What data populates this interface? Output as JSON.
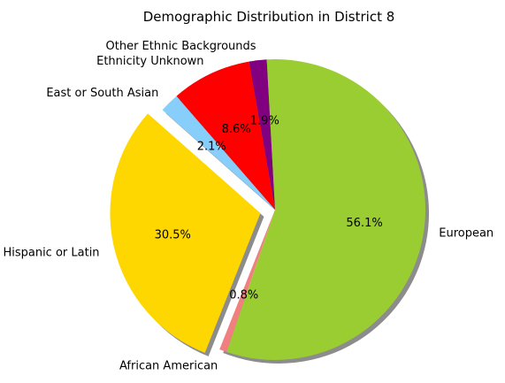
{
  "chart_data": {
    "type": "pie",
    "title": "Demographic Distribution in District 8",
    "start_angle_deg": 100,
    "direction": "clockwise",
    "shadow": true,
    "slices": [
      {
        "label": "Other Ethnic Backgrounds",
        "value": 1.9,
        "pct_label": "1.9%",
        "color": "#800080",
        "explode": 0
      },
      {
        "label": "European",
        "value": 56.1,
        "pct_label": "56.1%",
        "color": "#9ACD32",
        "explode": 0
      },
      {
        "label": "African American",
        "value": 0.8,
        "pct_label": "0.8%",
        "color": "#F08080",
        "explode": 0
      },
      {
        "label": "Hispanic or Latin",
        "value": 30.5,
        "pct_label": "30.5%",
        "color": "#FFD700",
        "explode": 0.1
      },
      {
        "label": "East or South Asian",
        "value": 2.1,
        "pct_label": "2.1%",
        "color": "#87CEFA",
        "explode": 0
      },
      {
        "label": "Ethnicity Unknown",
        "value": 8.6,
        "pct_label": "8.6%",
        "color": "#FF0000",
        "explode": 0
      }
    ]
  }
}
